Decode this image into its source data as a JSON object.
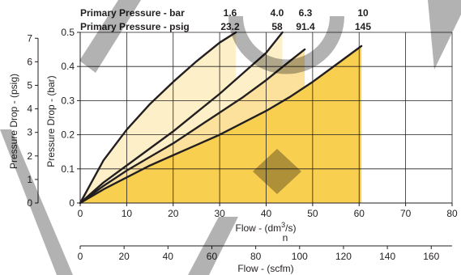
{
  "chart_data": {
    "type": "line",
    "header": {
      "bar_label": "Primary Pressure - bar",
      "psig_label": "Primary Pressure - psig",
      "columns": [
        {
          "bar": "1.6",
          "psig": "23.2"
        },
        {
          "bar": "4.0",
          "psig": "58"
        },
        {
          "bar": "6.3",
          "psig": "91.4"
        },
        {
          "bar": "10",
          "psig": "145"
        }
      ]
    },
    "x_axis": {
      "label": "Flow - (dm³/s)",
      "label_main": "Flow - (dm",
      "label_sup": "3",
      "label_end": "/s)",
      "subscript": "n",
      "range": [
        0,
        80
      ],
      "ticks": [
        0,
        10,
        20,
        30,
        40,
        50,
        60,
        70,
        80
      ]
    },
    "x2_axis": {
      "label": "Flow - (scfm)",
      "range": [
        0,
        169.5
      ],
      "ticks": [
        0,
        20,
        40,
        60,
        80,
        100,
        120,
        140,
        160
      ]
    },
    "y_axis": {
      "label": "Pressure Drop - (bar)",
      "range": [
        0,
        0.5
      ],
      "ticks": [
        "0",
        "0.1",
        "0.2",
        "0.3",
        "0.4",
        "0.5"
      ]
    },
    "y2_axis": {
      "label": "Pressure Drop - (psig)",
      "range": [
        0,
        7.25
      ],
      "ticks": [
        0,
        1,
        2,
        3,
        4,
        5,
        6,
        7
      ]
    },
    "series": [
      {
        "x": [
          0,
          5,
          10,
          15,
          20,
          25,
          30,
          33.5
        ],
        "y": [
          0,
          0.125,
          0.215,
          0.29,
          0.355,
          0.415,
          0.47,
          0.5
        ]
      },
      {
        "x": [
          0,
          5,
          10,
          15,
          20,
          25,
          30,
          35,
          40,
          43.5
        ],
        "y": [
          0,
          0.06,
          0.11,
          0.16,
          0.21,
          0.265,
          0.32,
          0.38,
          0.44,
          0.5
        ]
      },
      {
        "x": [
          0,
          5,
          10,
          15,
          20,
          25,
          30,
          35,
          40,
          45,
          48.3
        ],
        "y": [
          0,
          0.05,
          0.095,
          0.135,
          0.175,
          0.22,
          0.265,
          0.31,
          0.36,
          0.415,
          0.45
        ]
      },
      {
        "x": [
          0,
          5,
          10,
          15,
          20,
          25,
          30,
          35,
          40,
          45,
          50,
          55,
          60.5
        ],
        "y": [
          0,
          0.04,
          0.075,
          0.11,
          0.14,
          0.17,
          0.2,
          0.235,
          0.27,
          0.31,
          0.355,
          0.405,
          0.46
        ]
      }
    ],
    "colors": {
      "shade_light": "#fdf0c8",
      "shade_mid": "#fbe19c",
      "shade_dark": "#f8cf4f",
      "grid": "#231f20",
      "watermark": "#000000"
    }
  }
}
